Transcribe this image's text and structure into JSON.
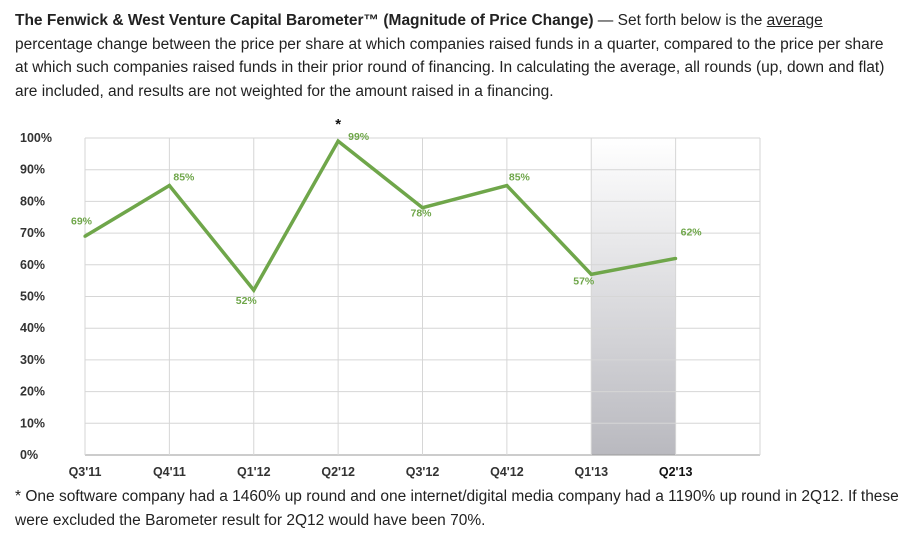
{
  "intro": {
    "lead": "The Fenwick & West Venture Capital Barometer™ (Magnitude of Price Change)",
    "dash": " — Set forth below is the ",
    "underlined": "average",
    "rest": " percentage change between the price per share at which companies raised funds in a quarter, compared to the price per share at which such companies raised funds in their prior round of financing. In calculating the average, all rounds (up, down and flat) are included, and results are not weighted for the amount raised in a financing."
  },
  "footnote": {
    "text": "* One software company had a 1460% up round and one internet/digital media company had a 1190% up round in 2Q12. If these were excluded the Barometer result for 2Q12 would have been 70%."
  },
  "chart_data": {
    "type": "line",
    "title": "",
    "xlabel": "",
    "ylabel": "",
    "categories": [
      "Q3'11",
      "Q4'11",
      "Q1'12",
      "Q2'12",
      "Q3'12",
      "Q4'12",
      "Q1'13",
      "Q2'13"
    ],
    "series": [
      {
        "name": "",
        "values": [
          69,
          85,
          52,
          99,
          78,
          85,
          57,
          62
        ],
        "data_labels": [
          "69%",
          "85%",
          "52%",
          "99%",
          "78%",
          "85%",
          "57%",
          "62%"
        ],
        "color": "#6fa64a"
      }
    ],
    "ylim": [
      0,
      100
    ],
    "y_ticks": [
      0,
      10,
      20,
      30,
      40,
      50,
      60,
      70,
      80,
      90,
      100
    ],
    "y_tick_labels": [
      "0%",
      "10%",
      "20%",
      "30%",
      "40%",
      "50%",
      "60%",
      "70%",
      "80%",
      "90%",
      "100%"
    ],
    "grid": true,
    "legend": "none",
    "highlighted_category": "Q2'13",
    "highlighted_category_fill": "#b9b9bf",
    "annotations": [
      {
        "category": "Q2'12",
        "text": "*"
      }
    ]
  }
}
